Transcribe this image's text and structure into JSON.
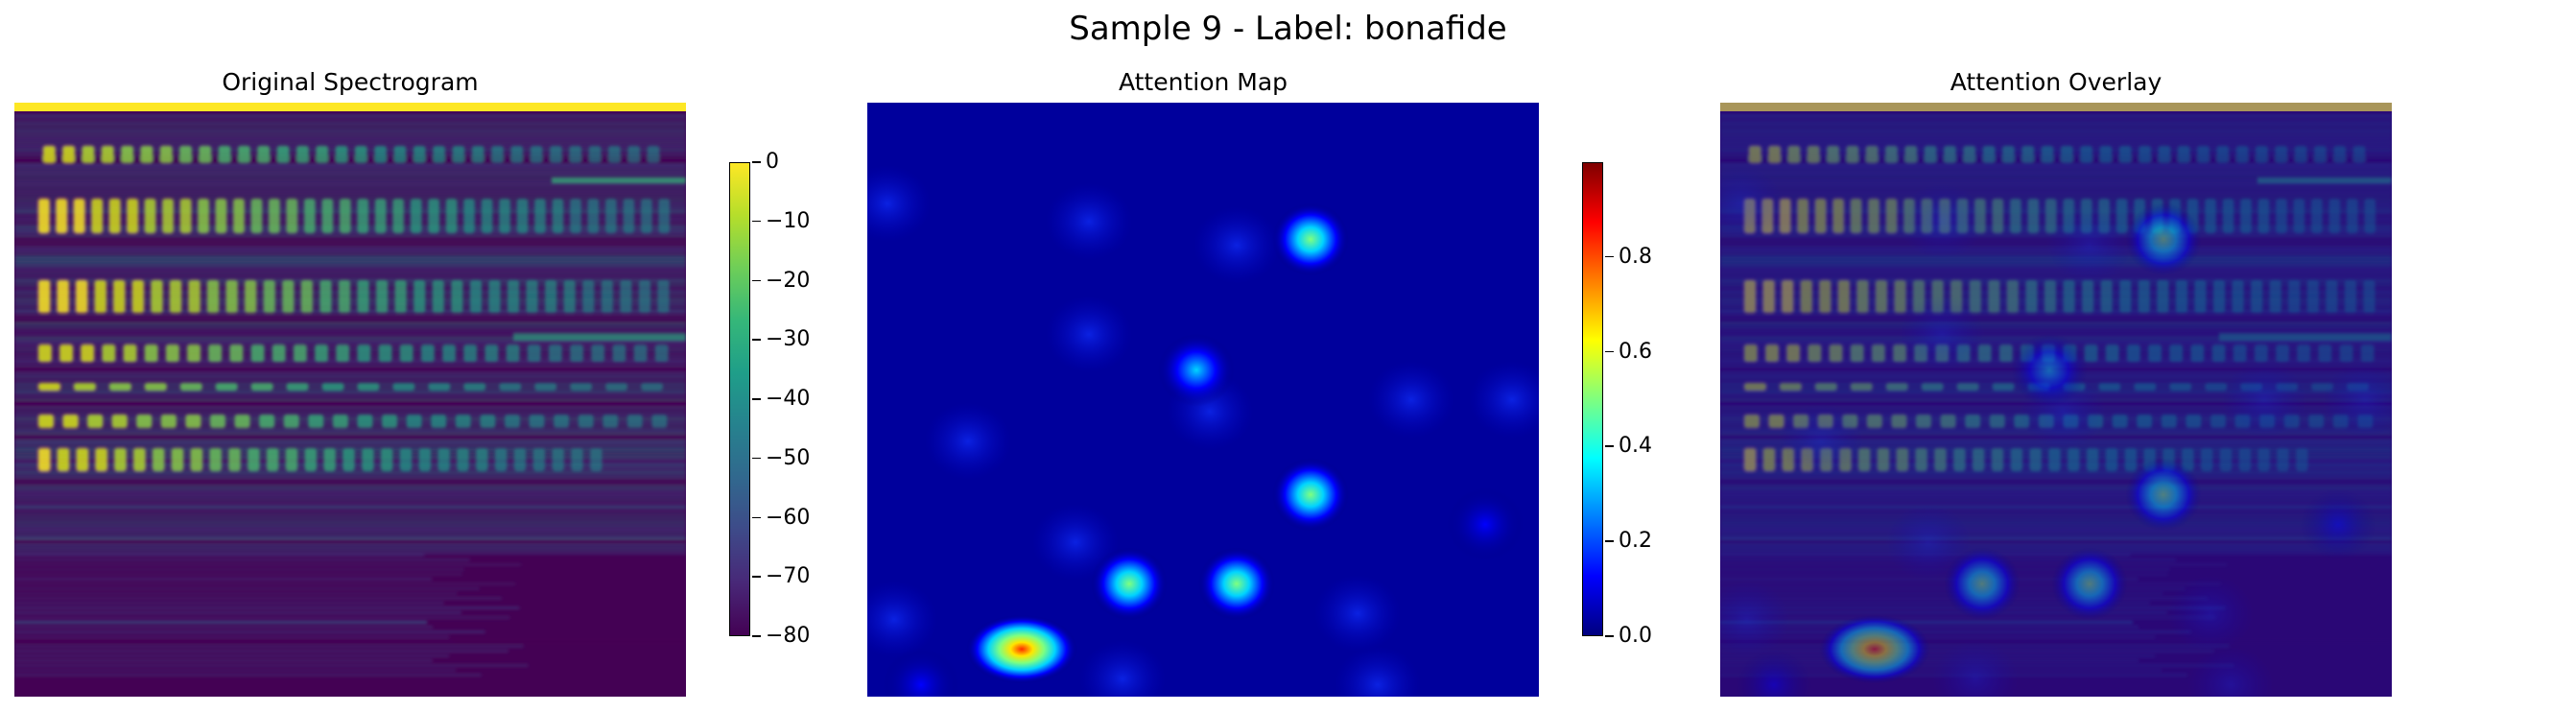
{
  "title": "Sample 9 - Label: bonafide",
  "chart_data": [
    {
      "type": "heatmap",
      "title": "Original Spectrogram",
      "colormap": "viridis",
      "colorbar": {
        "range": [
          -80,
          0
        ],
        "ticks": [
          "0",
          "−10",
          "−20",
          "−30",
          "−40",
          "−50",
          "−60",
          "−70",
          "−80"
        ]
      },
      "axes_visible": false
    },
    {
      "type": "heatmap",
      "title": "Attention Map",
      "colormap": "jet",
      "colorbar": {
        "range": [
          0.0,
          1.0
        ],
        "ticks": [
          "0.8",
          "0.6",
          "0.4",
          "0.2",
          "0.0"
        ]
      },
      "axes_visible": false,
      "hotspots": [
        {
          "col": 0.23,
          "row": 0.92,
          "value": 0.99
        },
        {
          "col": 0.66,
          "row": 0.23,
          "value": 0.55
        },
        {
          "col": 0.66,
          "row": 0.66,
          "value": 0.6
        },
        {
          "col": 0.39,
          "row": 0.81,
          "value": 0.62
        },
        {
          "col": 0.55,
          "row": 0.81,
          "value": 0.63
        },
        {
          "col": 0.49,
          "row": 0.45,
          "value": 0.35
        },
        {
          "col": 0.92,
          "row": 0.71,
          "value": 0.32
        },
        {
          "col": 0.08,
          "row": 0.98,
          "value": 0.3
        }
      ]
    },
    {
      "type": "heatmap",
      "title": "Attention Overlay",
      "description_colormaps": [
        "viridis",
        "jet"
      ],
      "axes_visible": false
    }
  ]
}
